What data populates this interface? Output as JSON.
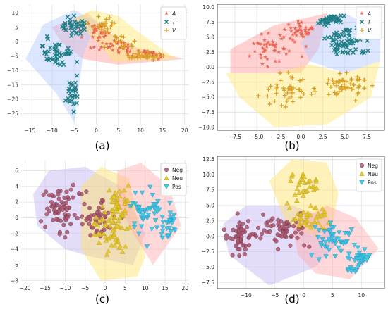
{
  "panels": [
    {
      "id": "a",
      "caption": "(a)",
      "type": "scatter",
      "xlim": [
        -17,
        21
      ],
      "ylim": [
        -29,
        13
      ],
      "xticks": [
        -15,
        -10,
        -5,
        0,
        5,
        10,
        15,
        20
      ],
      "yticks": [
        10,
        5,
        0,
        -5,
        -10,
        -15,
        -20,
        -25
      ],
      "xtick_labels": [
        "−15",
        "−10",
        "−5",
        "0",
        "5",
        "10",
        "15",
        "20"
      ],
      "ytick_labels": [
        "10",
        "5",
        "0",
        "−5",
        "−10",
        "−15",
        "−20",
        "−25"
      ],
      "grid": true,
      "legend": {
        "placement": "top-right",
        "italic": true
      },
      "series": [
        {
          "name": "A",
          "marker": "star",
          "color": "#e8604c",
          "hull": [
            [
              -10,
              5
            ],
            [
              -2,
              10
            ],
            [
              3,
              3
            ],
            [
              9,
              -2
            ],
            [
              20,
              -6
            ],
            [
              5,
              -8
            ],
            [
              -3,
              -6
            ],
            [
              -8,
              0
            ]
          ],
          "hull_color": "#ff9a9a",
          "cloud": {
            "centers": [
              [
                4,
                -2
              ],
              [
                12,
                -4
              ],
              [
                0,
                3
              ]
            ],
            "spread": [
              [
                5,
                2.5
              ],
              [
                4,
                1.5
              ],
              [
                3,
                3
              ]
            ],
            "count": 90
          }
        },
        {
          "name": "T",
          "marker": "x",
          "color": "#1f7f86",
          "hull": [
            [
              -16,
              -6
            ],
            [
              -12,
              6
            ],
            [
              -5,
              11
            ],
            [
              0,
              7
            ],
            [
              -3,
              -5
            ],
            [
              -5,
              -28
            ],
            [
              -9,
              -18
            ]
          ],
          "hull_color": "#b4c8ff",
          "cloud": {
            "centers": [
              [
                -9,
                -4
              ],
              [
                -5,
                5
              ],
              [
                -5,
                -18
              ]
            ],
            "spread": [
              [
                3,
                4
              ],
              [
                3,
                3
              ],
              [
                1.5,
                5
              ]
            ],
            "count": 110
          }
        },
        {
          "name": "V",
          "marker": "plus",
          "color": "#d9a028",
          "hull": [
            [
              -5,
              8
            ],
            [
              -1,
              11
            ],
            [
              5,
              9
            ],
            [
              9,
              4
            ],
            [
              18,
              -6
            ],
            [
              4,
              -7
            ],
            [
              0,
              0
            ]
          ],
          "hull_color": "#ffe66e",
          "cloud": {
            "centers": [
              [
                5,
                -1
              ],
              [
                2,
                6
              ],
              [
                11,
                -5
              ]
            ],
            "spread": [
              [
                4,
                3
              ],
              [
                3,
                2.5
              ],
              [
                4,
                1.2
              ]
            ],
            "count": 70
          }
        }
      ]
    },
    {
      "id": "b",
      "caption": "(b)",
      "type": "scatter",
      "xlim": [
        -9.5,
        9.5
      ],
      "ylim": [
        -10.5,
        10.5
      ],
      "xticks": [
        -7.5,
        -5,
        -2.5,
        0,
        2.5,
        5,
        7.5
      ],
      "yticks": [
        10,
        7.5,
        5,
        2.5,
        0,
        -2.5,
        -5,
        -7.5,
        -10
      ],
      "xtick_labels": [
        "−7.5",
        "−5.0",
        "−2.5",
        "0.0",
        "2.5",
        "5.0",
        "7.5"
      ],
      "ytick_labels": [
        "10.0",
        "7.5",
        "5.0",
        "2.5",
        "0.0",
        "−2.5",
        "−5.0",
        "−7.5",
        "−10.0"
      ],
      "grid": true,
      "legend": {
        "placement": "top-right",
        "italic": true
      },
      "series": [
        {
          "name": "A",
          "marker": "star",
          "color": "#e8604c",
          "hull": [
            [
              -8,
              3
            ],
            [
              -3,
              7
            ],
            [
              3,
              9
            ],
            [
              2,
              3
            ],
            [
              0,
              -1
            ],
            [
              -6,
              -1
            ],
            [
              -8,
              -1
            ]
          ],
          "hull_color": "#ff9a9a",
          "cloud": {
            "centers": [
              [
                -3,
                3
              ],
              [
                0,
                6
              ]
            ],
            "spread": [
              [
                2.5,
                2.2
              ],
              [
                2,
                1.5
              ]
            ],
            "count": 80
          }
        },
        {
          "name": "T",
          "marker": "x",
          "color": "#1f7f86",
          "hull": [
            [
              2,
              8
            ],
            [
              5,
              9
            ],
            [
              9,
              6
            ],
            [
              9,
              1
            ],
            [
              5,
              -1
            ],
            [
              1,
              1
            ],
            [
              0,
              4
            ]
          ],
          "hull_color": "#b4c8ff",
          "cloud": {
            "centers": [
              [
                5,
                4
              ],
              [
                3,
                8
              ]
            ],
            "spread": [
              [
                2,
                2.2
              ],
              [
                1.5,
                1
              ]
            ],
            "count": 110
          }
        },
        {
          "name": "V",
          "marker": "plus",
          "color": "#d9a028",
          "hull": [
            [
              -8.5,
              -1
            ],
            [
              -3,
              -1
            ],
            [
              1,
              0.5
            ],
            [
              5,
              -1
            ],
            [
              9,
              1
            ],
            [
              8,
              -5
            ],
            [
              3,
              -9.5
            ],
            [
              -3,
              -10
            ],
            [
              -7,
              -5
            ]
          ],
          "hull_color": "#ffe66e",
          "cloud": {
            "centers": [
              [
                -1,
                -4
              ],
              [
                5,
                -3
              ]
            ],
            "spread": [
              [
                3,
                2.5
              ],
              [
                2.5,
                2
              ]
            ],
            "count": 100
          }
        }
      ]
    },
    {
      "id": "c",
      "caption": "(c)",
      "type": "scatter",
      "xlim": [
        -21,
        21
      ],
      "ylim": [
        -8.3,
        7.3
      ],
      "xticks": [
        -20,
        -15,
        -10,
        -5,
        0,
        5,
        10,
        15,
        20
      ],
      "yticks": [
        6,
        4,
        2,
        0,
        -2,
        -4,
        -6,
        -8
      ],
      "xtick_labels": [
        "−20",
        "−15",
        "−10",
        "−5",
        "0",
        "5",
        "10",
        "15",
        "20"
      ],
      "ytick_labels": [
        "6",
        "4",
        "2",
        "0",
        "−2",
        "−4",
        "−6",
        "−8"
      ],
      "grid": true,
      "legend": {
        "placement": "top-right",
        "italic": false
      },
      "series": [
        {
          "name": "Neg",
          "marker": "circle",
          "color": "#a8556c",
          "hull": [
            [
              -18,
              3
            ],
            [
              -14,
              6
            ],
            [
              -5,
              6.5
            ],
            [
              4,
              4
            ],
            [
              10,
              -2
            ],
            [
              7,
              -6
            ],
            [
              -3,
              -5
            ],
            [
              -10,
              -4
            ],
            [
              -17,
              -1
            ]
          ],
          "hull_color": "#c2b4f5",
          "cloud": {
            "centers": [
              [
                -11,
                1
              ],
              [
                -2,
                0
              ]
            ],
            "spread": [
              [
                4,
                2.5
              ],
              [
                4,
                2.2
              ]
            ],
            "count": 110
          }
        },
        {
          "name": "Neu",
          "marker": "triangle-up",
          "color": "#e2c426",
          "hull": [
            [
              -6,
              4
            ],
            [
              -1,
              6.5
            ],
            [
              6,
              5
            ],
            [
              10,
              -5
            ],
            [
              8,
              -7.5
            ],
            [
              -1,
              -8
            ],
            [
              -6,
              -4
            ]
          ],
          "hull_color": "#ffe066",
          "cloud": {
            "centers": [
              [
                1,
                -2
              ],
              [
                3,
                2
              ]
            ],
            "spread": [
              [
                4,
                2.5
              ],
              [
                4,
                2
              ]
            ],
            "count": 90
          }
        },
        {
          "name": "Pos",
          "marker": "triangle-down",
          "color": "#35c3e8",
          "hull": [
            [
              3,
              6
            ],
            [
              9,
              7
            ],
            [
              16,
              4
            ],
            [
              19,
              -1
            ],
            [
              12,
              -6
            ],
            [
              7,
              -2
            ],
            [
              3,
              2
            ]
          ],
          "hull_color": "#ffaaaa",
          "cloud": {
            "centers": [
              [
                11,
                1
              ],
              [
                16,
                -1
              ]
            ],
            "spread": [
              [
                4,
                3
              ],
              [
                2,
                2
              ]
            ],
            "count": 70
          }
        }
      ]
    },
    {
      "id": "d",
      "caption": "(d)",
      "type": "scatter",
      "xlim": [
        -15,
        14
      ],
      "ylim": [
        -8.5,
        13
      ],
      "xticks": [
        -10,
        -5,
        0,
        5,
        10
      ],
      "yticks": [
        12.5,
        10,
        7.5,
        5,
        2.5,
        0,
        -2.5,
        -5,
        -7.5
      ],
      "xtick_labels": [
        "−10",
        "−5",
        "0",
        "5",
        "10"
      ],
      "ytick_labels": [
        "12.5",
        "10.0",
        "7.5",
        "5.0",
        "2.5",
        "0.0",
        "−2.5",
        "−5.0",
        "−7.5"
      ],
      "grid": true,
      "legend": {
        "placement": "top-right",
        "italic": false
      },
      "series": [
        {
          "name": "Neg",
          "marker": "circle",
          "color": "#a8556c",
          "hull": [
            [
              -14,
              2
            ],
            [
              -10,
              5
            ],
            [
              -2,
              5
            ],
            [
              4,
              3
            ],
            [
              6,
              -1
            ],
            [
              2,
              -5
            ],
            [
              -6,
              -8
            ],
            [
              -13,
              -3
            ]
          ],
          "hull_color": "#c2b4f5",
          "cloud": {
            "centers": [
              [
                -4,
                1
              ],
              [
                -11,
                0
              ]
            ],
            "spread": [
              [
                4,
                2.5
              ],
              [
                2,
                2.5
              ]
            ],
            "count": 110
          }
        },
        {
          "name": "Neu",
          "marker": "triangle-up",
          "color": "#e2c426",
          "hull": [
            [
              -6,
              9
            ],
            [
              -2,
              12.5
            ],
            [
              4,
              12
            ],
            [
              6,
              7
            ],
            [
              5,
              2
            ],
            [
              2,
              0
            ],
            [
              -3,
              2
            ]
          ],
          "hull_color": "#ffe066",
          "cloud": {
            "centers": [
              [
                0,
                8
              ],
              [
                1,
                3
              ]
            ],
            "spread": [
              [
                3,
                2.5
              ],
              [
                3,
                2
              ]
            ],
            "count": 70
          }
        },
        {
          "name": "Pos",
          "marker": "triangle-down",
          "color": "#35c3e8",
          "hull": [
            [
              -2,
              2
            ],
            [
              4,
              5
            ],
            [
              9,
              3
            ],
            [
              13,
              -2
            ],
            [
              8,
              -7
            ],
            [
              2,
              -6
            ],
            [
              -1,
              -3
            ]
          ],
          "hull_color": "#ffaaaa",
          "cloud": {
            "centers": [
              [
                5,
                -1
              ],
              [
                10,
                -4
              ]
            ],
            "spread": [
              [
                3,
                2.5
              ],
              [
                2,
                2
              ]
            ],
            "count": 80
          }
        }
      ]
    }
  ]
}
